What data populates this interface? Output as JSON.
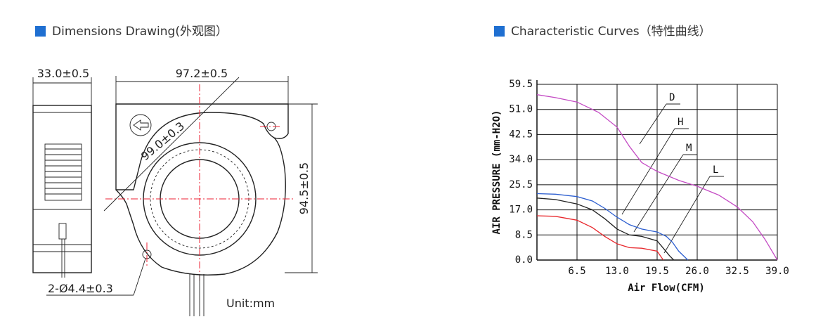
{
  "drawing": {
    "title": "Dimensions Drawing(外观图）",
    "labels": [
      "33.0±0.5",
      "97.2±0.5",
      "99.0±0.3",
      "94.5±0.5",
      "2-Ø4.4±0.3"
    ],
    "unit": "Unit:mm"
  },
  "chart_data": {
    "type": "line",
    "title": "Characteristic Curves（特性曲线）",
    "x_label": "Air Flow(CFM)",
    "y_label": "AIR PRESSURE (mm-H2O)",
    "xlim": [
      0,
      39
    ],
    "xticks": [
      6.5,
      {
        "value": 13,
        "label": "13.0"
      },
      19.5,
      {
        "value": 26,
        "label": "26.0"
      },
      32.5,
      {
        "value": 39,
        "label": "39.0"
      }
    ],
    "ylim": [
      0,
      59.5
    ],
    "yticks": [
      {
        "value": 0,
        "label": "0.0"
      },
      8.5,
      {
        "value": 17,
        "label": "17.0"
      },
      25.5,
      {
        "value": 34,
        "label": "34.0"
      },
      42.5,
      {
        "value": 51,
        "label": "51.0"
      },
      59.5
    ],
    "grid": true,
    "series": [
      {
        "name": "D",
        "color": "#c44bc4",
        "x": [
          0,
          3,
          6.5,
          10,
          13,
          15,
          17,
          19.5,
          23,
          26,
          29.5,
          32.5,
          35,
          37,
          39
        ],
        "values": [
          56,
          55,
          53.5,
          50,
          45,
          38.5,
          33,
          30,
          27,
          25,
          22,
          18,
          13,
          7,
          0
        ]
      },
      {
        "name": "H",
        "color": "#2d5fd0",
        "x": [
          0,
          3,
          6.5,
          9,
          11,
          13,
          15,
          17,
          19.5,
          21,
          22,
          23,
          24.5
        ],
        "values": [
          22.5,
          22.3,
          21.5,
          20,
          17.5,
          14.5,
          12,
          10.5,
          9.5,
          8,
          6,
          3,
          0
        ]
      },
      {
        "name": "M",
        "color": "#222222",
        "x": [
          0,
          3,
          6.5,
          9,
          11,
          13,
          15,
          17,
          19.5,
          20.5,
          21.5,
          22.2
        ],
        "values": [
          21,
          20.5,
          19,
          17,
          14,
          10.5,
          8.5,
          8,
          6.5,
          4,
          1.5,
          0
        ]
      },
      {
        "name": "L",
        "color": "#e8282d",
        "x": [
          0,
          3,
          6.5,
          9,
          11,
          13,
          15,
          17,
          19.5,
          20.5
        ],
        "values": [
          15,
          14.8,
          13.5,
          11,
          8,
          5.5,
          4.2,
          4,
          3,
          0
        ]
      }
    ]
  }
}
